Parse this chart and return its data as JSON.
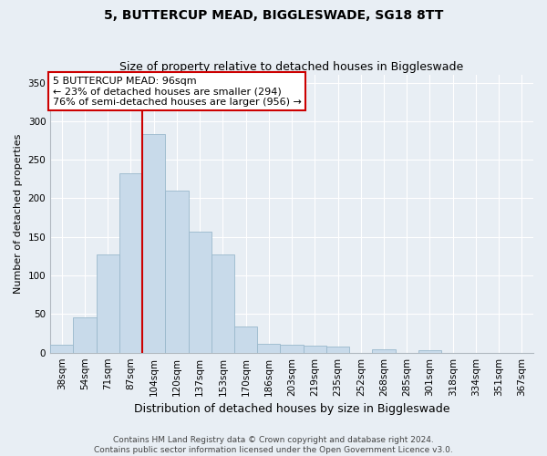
{
  "title": "5, BUTTERCUP MEAD, BIGGLESWADE, SG18 8TT",
  "subtitle": "Size of property relative to detached houses in Biggleswade",
  "xlabel": "Distribution of detached houses by size in Biggleswade",
  "ylabel": "Number of detached properties",
  "categories": [
    "38sqm",
    "54sqm",
    "71sqm",
    "87sqm",
    "104sqm",
    "120sqm",
    "137sqm",
    "153sqm",
    "170sqm",
    "186sqm",
    "203sqm",
    "219sqm",
    "235sqm",
    "252sqm",
    "268sqm",
    "285sqm",
    "301sqm",
    "318sqm",
    "334sqm",
    "351sqm",
    "367sqm"
  ],
  "values": [
    10,
    46,
    127,
    232,
    283,
    210,
    157,
    127,
    34,
    11,
    10,
    9,
    8,
    0,
    4,
    0,
    3,
    0,
    0,
    0,
    0
  ],
  "bar_color": "#c8daea",
  "bar_edge_color": "#9ab8cc",
  "vline_color": "#cc0000",
  "vline_pos": 3.5,
  "annotation_text": "5 BUTTERCUP MEAD: 96sqm\n← 23% of detached houses are smaller (294)\n76% of semi-detached houses are larger (956) →",
  "annotation_box_color": "#ffffff",
  "annotation_box_edge": "#cc0000",
  "ylim": [
    0,
    360
  ],
  "yticks": [
    0,
    50,
    100,
    150,
    200,
    250,
    300,
    350
  ],
  "footer_line1": "Contains HM Land Registry data © Crown copyright and database right 2024.",
  "footer_line2": "Contains public sector information licensed under the Open Government Licence v3.0.",
  "bg_color": "#e8eef4",
  "plot_bg_color": "#e8eef4",
  "title_fontsize": 10,
  "subtitle_fontsize": 9,
  "ylabel_fontsize": 8,
  "xlabel_fontsize": 9,
  "tick_fontsize": 7.5,
  "footer_fontsize": 6.5,
  "annot_fontsize": 8
}
